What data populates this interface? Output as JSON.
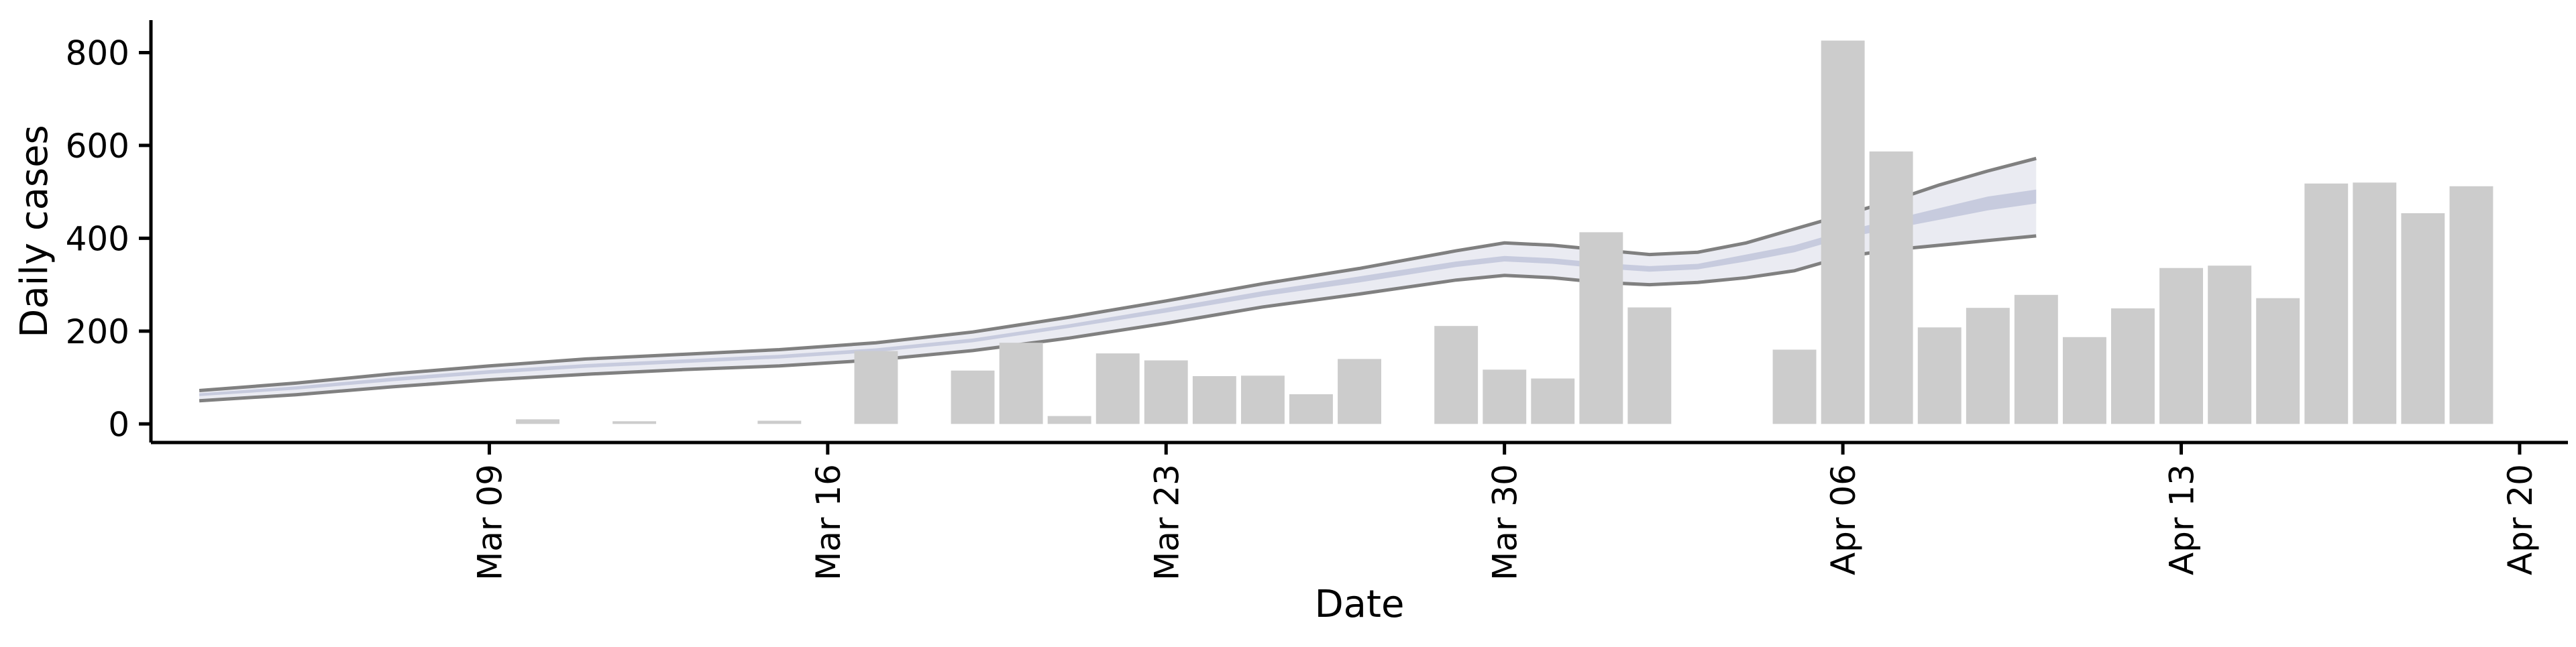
{
  "chart_data": {
    "type": "bar",
    "xlabel": "Date",
    "ylabel": "Daily cases",
    "ylim": [
      -40,
      870
    ],
    "x_tick_labels": [
      "Mar 09",
      "Mar 16",
      "Mar 23",
      "Mar 30",
      "Apr 06",
      "Apr 13",
      "Apr 20"
    ],
    "x_tick_dates": [
      "2020-03-09",
      "2020-03-16",
      "2020-03-23",
      "2020-03-30",
      "2020-04-06",
      "2020-04-13",
      "2020-04-20"
    ],
    "y_ticks": [
      0,
      200,
      400,
      600,
      800
    ],
    "xlim": [
      "2020-03-02",
      "2020-04-21"
    ],
    "colors": {
      "bars": "#cccccc",
      "band_outer": "#e6e8f0",
      "band_inner": "#c3c8dc",
      "band_bounds": "#808080",
      "axis": "#000000"
    },
    "bars": [
      {
        "date": "2020-03-10",
        "value": 10
      },
      {
        "date": "2020-03-12",
        "value": 2
      },
      {
        "date": "2020-03-15",
        "value": 7
      },
      {
        "date": "2020-03-17",
        "value": 157
      },
      {
        "date": "2020-03-19",
        "value": 115
      },
      {
        "date": "2020-03-20",
        "value": 175
      },
      {
        "date": "2020-03-21",
        "value": 17
      },
      {
        "date": "2020-03-22",
        "value": 152
      },
      {
        "date": "2020-03-23",
        "value": 137
      },
      {
        "date": "2020-03-24",
        "value": 103
      },
      {
        "date": "2020-03-25",
        "value": 104
      },
      {
        "date": "2020-03-26",
        "value": 64
      },
      {
        "date": "2020-03-27",
        "value": 140
      },
      {
        "date": "2020-03-29",
        "value": 211
      },
      {
        "date": "2020-03-30",
        "value": 117
      },
      {
        "date": "2020-03-31",
        "value": 98
      },
      {
        "date": "2020-04-01",
        "value": 413
      },
      {
        "date": "2020-04-02",
        "value": 251
      },
      {
        "date": "2020-04-05",
        "value": 160
      },
      {
        "date": "2020-04-06",
        "value": 826
      },
      {
        "date": "2020-04-07",
        "value": 587
      },
      {
        "date": "2020-04-08",
        "value": 208
      },
      {
        "date": "2020-04-09",
        "value": 250
      },
      {
        "date": "2020-04-10",
        "value": 278
      },
      {
        "date": "2020-04-11",
        "value": 187
      },
      {
        "date": "2020-04-12",
        "value": 249
      },
      {
        "date": "2020-04-13",
        "value": 336
      },
      {
        "date": "2020-04-14",
        "value": 341
      },
      {
        "date": "2020-04-15",
        "value": 271
      },
      {
        "date": "2020-04-16",
        "value": 518
      },
      {
        "date": "2020-04-17",
        "value": 520
      },
      {
        "date": "2020-04-18",
        "value": 454
      },
      {
        "date": "2020-04-19",
        "value": 512
      }
    ],
    "band": {
      "dates": [
        "2020-03-03",
        "2020-03-05",
        "2020-03-07",
        "2020-03-09",
        "2020-03-11",
        "2020-03-13",
        "2020-03-15",
        "2020-03-17",
        "2020-03-19",
        "2020-03-21",
        "2020-03-23",
        "2020-03-25",
        "2020-03-27",
        "2020-03-29",
        "2020-03-30",
        "2020-03-31",
        "2020-04-01",
        "2020-04-02",
        "2020-04-03",
        "2020-04-04",
        "2020-04-05",
        "2020-04-06",
        "2020-04-07",
        "2020-04-08",
        "2020-04-09",
        "2020-04-10"
      ],
      "lower": [
        50,
        63,
        80,
        95,
        107,
        117,
        125,
        138,
        158,
        185,
        217,
        252,
        280,
        310,
        320,
        315,
        305,
        300,
        305,
        315,
        330,
        360,
        375,
        385,
        395,
        405
      ],
      "upper": [
        72,
        88,
        108,
        125,
        140,
        150,
        160,
        175,
        198,
        230,
        265,
        302,
        335,
        373,
        390,
        385,
        375,
        365,
        370,
        390,
        420,
        450,
        480,
        515,
        545,
        572
      ],
      "inner_lower": [
        60,
        74,
        92,
        108,
        121,
        131,
        141,
        155,
        176,
        207,
        240,
        275,
        305,
        338,
        350,
        345,
        335,
        328,
        333,
        350,
        370,
        400,
        420,
        440,
        460,
        475
      ],
      "inner_upper": [
        66,
        81,
        100,
        116,
        129,
        139,
        149,
        163,
        184,
        215,
        250,
        286,
        318,
        350,
        362,
        357,
        347,
        340,
        345,
        365,
        385,
        415,
        440,
        465,
        490,
        505
      ]
    }
  }
}
